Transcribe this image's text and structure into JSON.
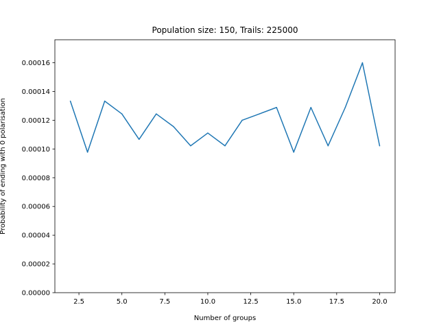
{
  "chart_data": {
    "type": "line",
    "title": "Population size: 150, Trails: 225000",
    "xlabel": "Number of groups",
    "ylabel": "Probability of ending with 0 polarisation",
    "xlim": [
      1.1,
      20.9
    ],
    "ylim": [
      0,
      0.000176
    ],
    "xticks": [
      2.5,
      5.0,
      7.5,
      10.0,
      12.5,
      15.0,
      17.5,
      20.0
    ],
    "xtick_labels": [
      "2.5",
      "5.0",
      "7.5",
      "10.0",
      "12.5",
      "15.0",
      "17.5",
      "20.0"
    ],
    "yticks": [
      0,
      2e-05,
      4e-05,
      6e-05,
      8e-05,
      0.0001,
      0.00012,
      0.00014,
      0.00016
    ],
    "ytick_labels": [
      "0.00000",
      "0.00002",
      "0.00004",
      "0.00006",
      "0.00008",
      "0.00010",
      "0.00012",
      "0.00014",
      "0.00016"
    ],
    "grid": false,
    "legend": "none",
    "series": [
      {
        "color": "#1f77b4",
        "x": [
          2,
          3,
          4,
          5,
          6,
          7,
          8,
          9,
          10,
          11,
          12,
          13,
          14,
          15,
          16,
          17,
          18,
          19,
          20
        ],
        "y": [
          0.0001333,
          9.78e-05,
          0.0001333,
          0.0001244,
          0.0001067,
          0.0001244,
          0.0001156,
          0.0001022,
          0.0001111,
          0.0001022,
          0.00012,
          0.0001244,
          0.0001289,
          9.78e-05,
          0.0001289,
          0.0001022,
          0.0001289,
          0.00016,
          0.0001022
        ]
      }
    ]
  }
}
